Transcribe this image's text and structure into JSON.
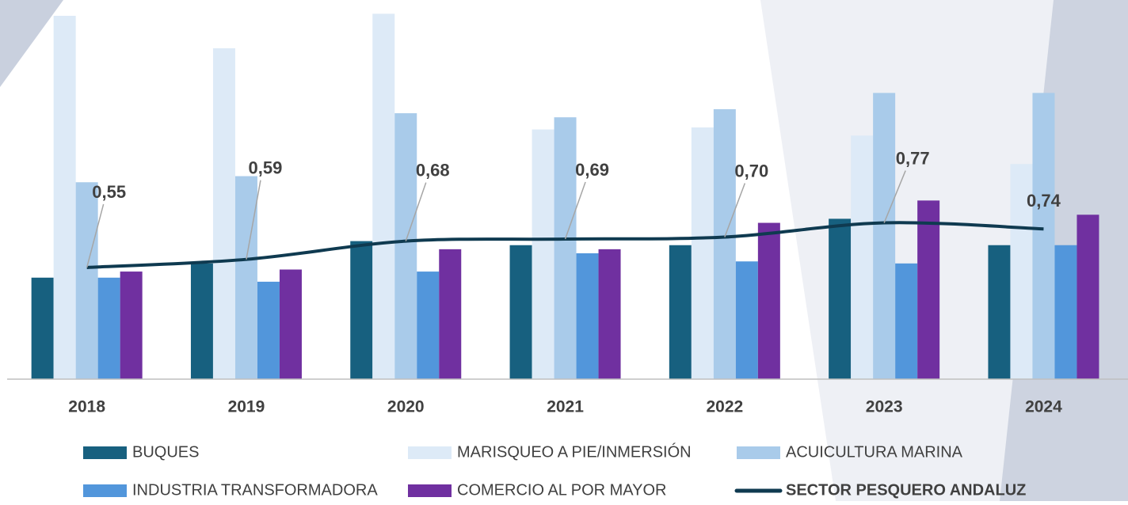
{
  "chart_data": {
    "type": "bar",
    "categories": [
      "2018",
      "2019",
      "2020",
      "2021",
      "2022",
      "2023",
      "2024"
    ],
    "ylim": [
      0,
      1.86
    ],
    "series": [
      {
        "name": "BUQUES",
        "color": "#17607f",
        "values": [
          0.5,
          0.57,
          0.68,
          0.66,
          0.66,
          0.79,
          0.66
        ]
      },
      {
        "name": "MARISQUEO A PIE/INMERSIÓN",
        "color": "#ddeaf7",
        "values": [
          1.79,
          1.63,
          1.8,
          1.23,
          1.24,
          1.2,
          1.06
        ]
      },
      {
        "name": "ACUICULTURA MARINA",
        "color": "#a9cbea",
        "values": [
          0.97,
          1.0,
          1.31,
          1.29,
          1.33,
          1.41,
          1.41
        ]
      },
      {
        "name": "INDUSTRIA TRANSFORMADORA",
        "color": "#5296db",
        "values": [
          0.5,
          0.48,
          0.53,
          0.62,
          0.58,
          0.57,
          0.66
        ]
      },
      {
        "name": "COMERCIO AL POR MAYOR",
        "color": "#7030a0",
        "values": [
          0.53,
          0.54,
          0.64,
          0.64,
          0.77,
          0.88,
          0.81
        ]
      }
    ],
    "line": {
      "type": "line",
      "name": "SECTOR PESQUERO ANDALUZ",
      "color": "#0f3a50",
      "values": [
        0.55,
        0.59,
        0.68,
        0.69,
        0.7,
        0.77,
        0.74
      ],
      "value_labels": [
        "0,55",
        "0,59",
        "0,68",
        "0,69",
        "0,70",
        "0,77",
        "0,74"
      ]
    }
  }
}
